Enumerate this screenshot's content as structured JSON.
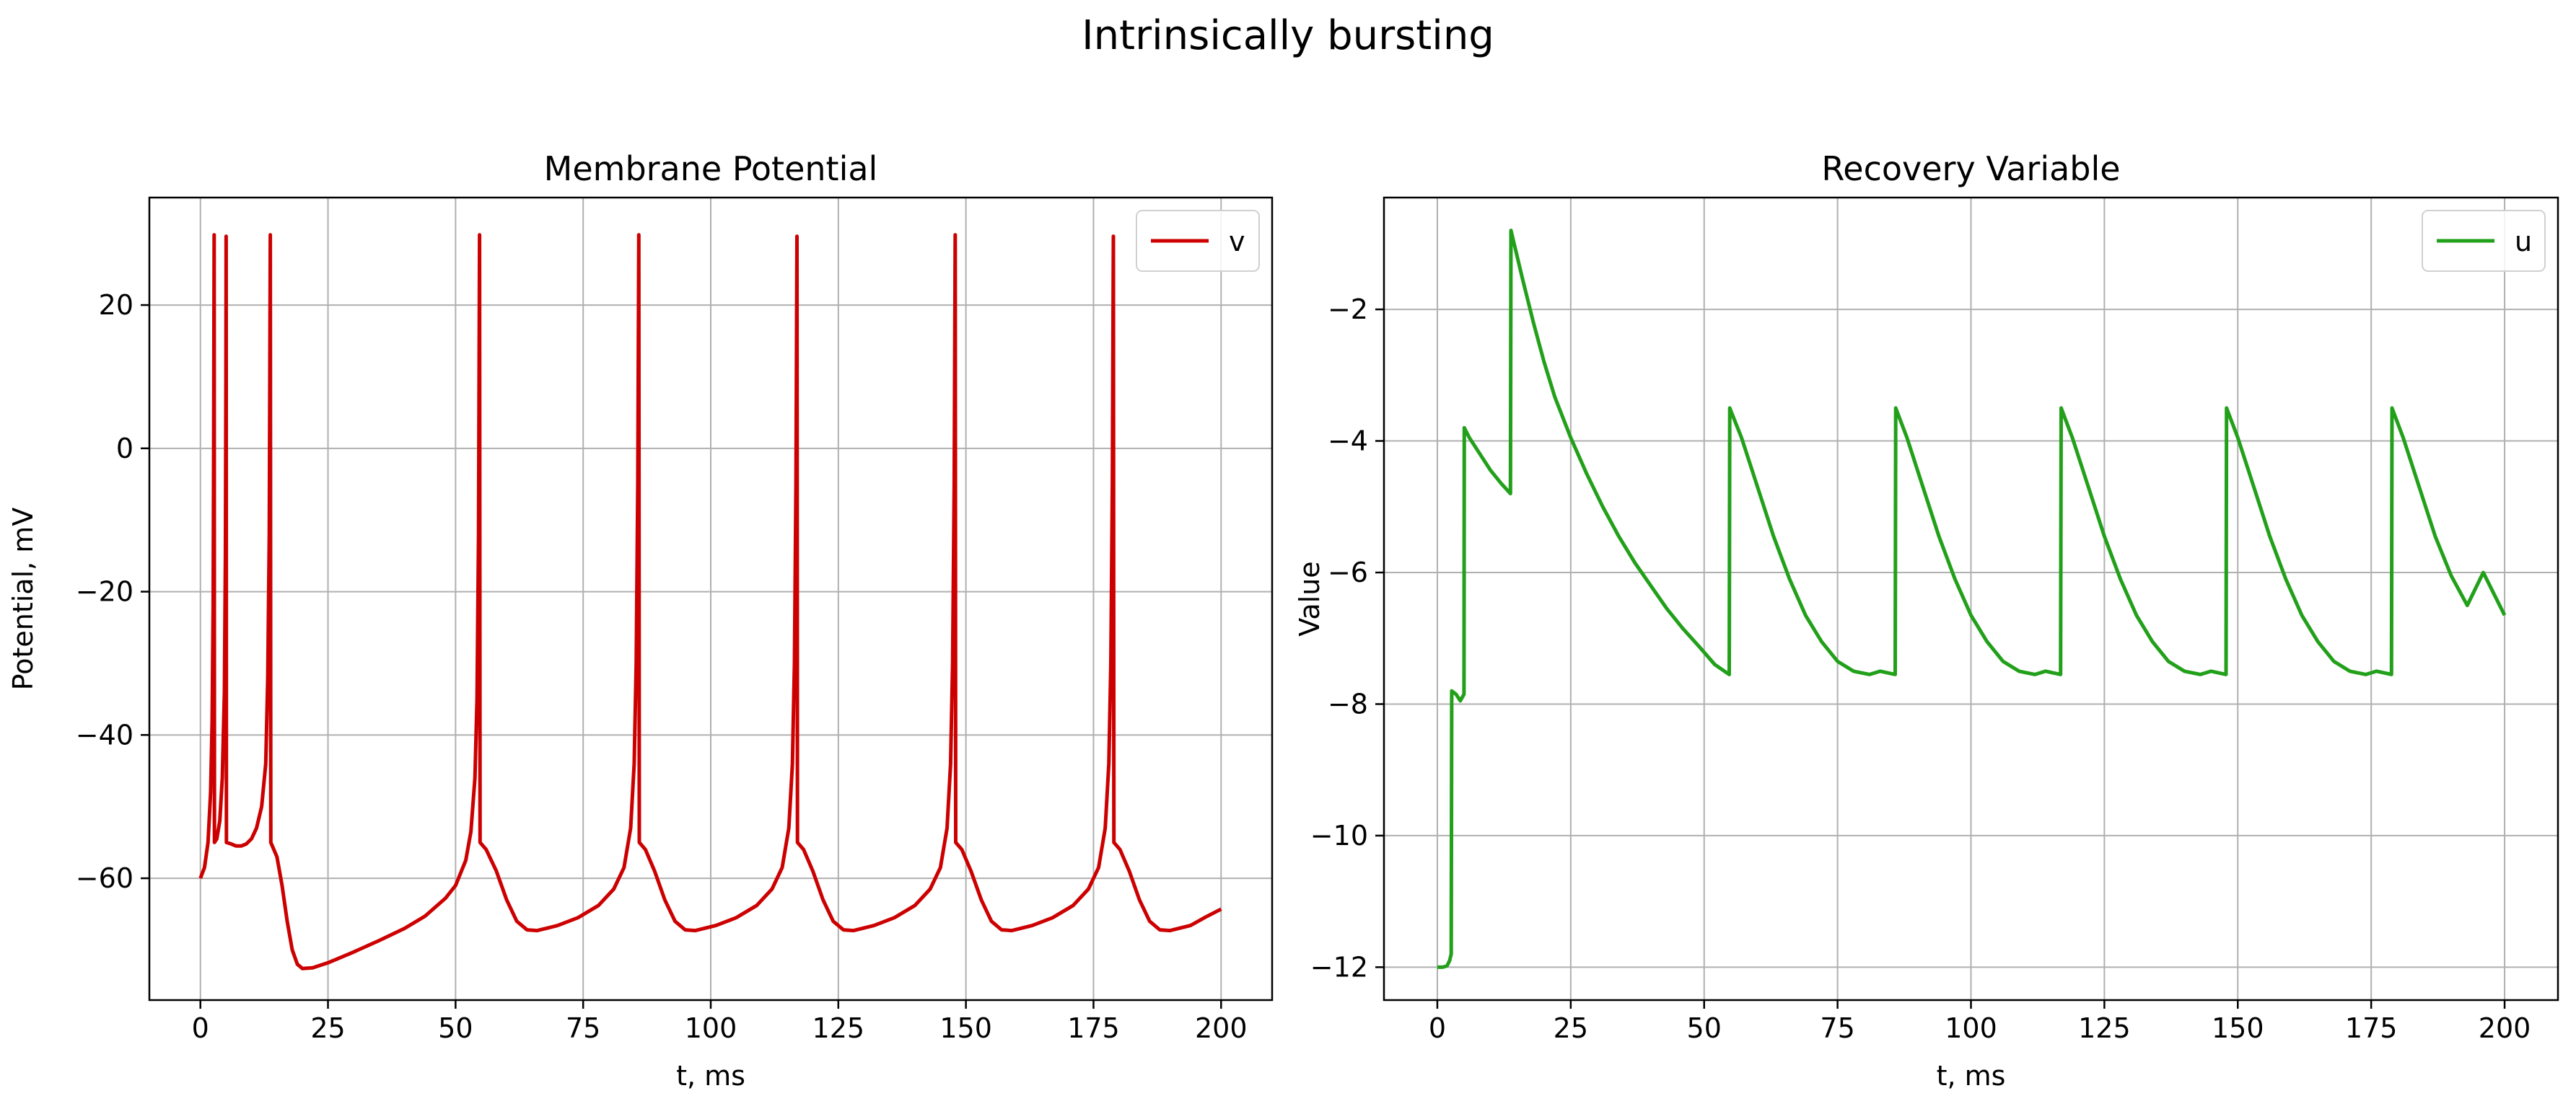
{
  "figure": {
    "suptitle": "Intrinsically bursting"
  },
  "chart_data": [
    {
      "type": "line",
      "title": "Membrane Potential",
      "xlabel": "t, ms",
      "ylabel": "Potential, mV",
      "xlim": [
        -10,
        210
      ],
      "ylim": [
        -77,
        35
      ],
      "xticks": [
        0,
        25,
        50,
        75,
        100,
        125,
        150,
        175,
        200
      ],
      "yticks": [
        -60,
        -40,
        -20,
        0,
        20
      ],
      "grid": true,
      "legend_position": "upper right",
      "series": [
        {
          "name": "v",
          "color": "#cc0000",
          "points": [
            [
              0,
              -60
            ],
            [
              0.8,
              -58.5
            ],
            [
              1.5,
              -55
            ],
            [
              2.0,
              -48
            ],
            [
              2.3,
              -38
            ],
            [
              2.5,
              -22
            ],
            [
              2.6,
              0
            ],
            [
              2.7,
              29.8
            ],
            [
              2.75,
              -55
            ],
            [
              3.2,
              -54.5
            ],
            [
              3.8,
              -52
            ],
            [
              4.3,
              -46
            ],
            [
              4.7,
              -34
            ],
            [
              4.9,
              -15
            ],
            [
              5.0,
              10
            ],
            [
              5.05,
              29.6
            ],
            [
              5.1,
              -55
            ],
            [
              6,
              -55.2
            ],
            [
              7,
              -55.5
            ],
            [
              8,
              -55.5
            ],
            [
              9,
              -55.2
            ],
            [
              10,
              -54.5
            ],
            [
              11,
              -53
            ],
            [
              12,
              -50
            ],
            [
              12.8,
              -44
            ],
            [
              13.2,
              -32
            ],
            [
              13.5,
              -12
            ],
            [
              13.7,
              29.8
            ],
            [
              13.8,
              -55
            ],
            [
              15,
              -57
            ],
            [
              16,
              -61
            ],
            [
              17,
              -66
            ],
            [
              18,
              -70
            ],
            [
              19,
              -72
            ],
            [
              20,
              -72.6
            ],
            [
              22,
              -72.5
            ],
            [
              25,
              -71.8
            ],
            [
              30,
              -70.3
            ],
            [
              35,
              -68.7
            ],
            [
              40,
              -67
            ],
            [
              44,
              -65.3
            ],
            [
              48,
              -62.8
            ],
            [
              50,
              -61
            ],
            [
              52,
              -57.5
            ],
            [
              53,
              -53.5
            ],
            [
              53.8,
              -46
            ],
            [
              54.2,
              -35
            ],
            [
              54.5,
              -12
            ],
            [
              54.7,
              29.8
            ],
            [
              54.8,
              -55
            ],
            [
              56,
              -56
            ],
            [
              58,
              -59
            ],
            [
              60,
              -63
            ],
            [
              62,
              -66
            ],
            [
              64,
              -67.2
            ],
            [
              66,
              -67.3
            ],
            [
              70,
              -66.6
            ],
            [
              74,
              -65.5
            ],
            [
              78,
              -63.8
            ],
            [
              81,
              -61.5
            ],
            [
              83,
              -58.5
            ],
            [
              84.3,
              -53
            ],
            [
              85.0,
              -44
            ],
            [
              85.4,
              -30
            ],
            [
              85.7,
              -5
            ],
            [
              85.9,
              29.8
            ],
            [
              86.0,
              -55
            ],
            [
              87.2,
              -56
            ],
            [
              89,
              -59
            ],
            [
              91,
              -63
            ],
            [
              93,
              -66
            ],
            [
              95,
              -67.2
            ],
            [
              97,
              -67.3
            ],
            [
              101,
              -66.6
            ],
            [
              105,
              -65.5
            ],
            [
              109,
              -63.8
            ],
            [
              112,
              -61.5
            ],
            [
              114,
              -58.5
            ],
            [
              115.3,
              -53
            ],
            [
              116.0,
              -44
            ],
            [
              116.4,
              -30
            ],
            [
              116.7,
              -5
            ],
            [
              116.9,
              29.6
            ],
            [
              117.0,
              -55
            ],
            [
              118.2,
              -56
            ],
            [
              120,
              -59
            ],
            [
              122,
              -63
            ],
            [
              124,
              -66
            ],
            [
              126,
              -67.2
            ],
            [
              128,
              -67.3
            ],
            [
              132,
              -66.6
            ],
            [
              136,
              -65.5
            ],
            [
              140,
              -63.8
            ],
            [
              143,
              -61.5
            ],
            [
              145,
              -58.5
            ],
            [
              146.3,
              -53
            ],
            [
              147.0,
              -44
            ],
            [
              147.4,
              -30
            ],
            [
              147.7,
              -5
            ],
            [
              147.9,
              29.8
            ],
            [
              148.0,
              -55
            ],
            [
              149.2,
              -56
            ],
            [
              151,
              -59
            ],
            [
              153,
              -63
            ],
            [
              155,
              -66
            ],
            [
              157,
              -67.2
            ],
            [
              159,
              -67.3
            ],
            [
              163,
              -66.6
            ],
            [
              167,
              -65.5
            ],
            [
              171,
              -63.8
            ],
            [
              174,
              -61.5
            ],
            [
              176,
              -58.5
            ],
            [
              177.3,
              -53
            ],
            [
              178.0,
              -44
            ],
            [
              178.4,
              -30
            ],
            [
              178.7,
              -5
            ],
            [
              178.9,
              29.6
            ],
            [
              179.0,
              -55
            ],
            [
              180.2,
              -56
            ],
            [
              182,
              -59
            ],
            [
              184,
              -63
            ],
            [
              186,
              -66
            ],
            [
              188,
              -67.2
            ],
            [
              190,
              -67.3
            ],
            [
              194,
              -66.6
            ],
            [
              197,
              -65.4
            ],
            [
              200,
              -64.3
            ]
          ]
        }
      ]
    },
    {
      "type": "line",
      "title": "Recovery Variable",
      "xlabel": "t, ms",
      "ylabel": "Value",
      "xlim": [
        -10,
        210
      ],
      "ylim": [
        -12.5,
        -0.3
      ],
      "xticks": [
        0,
        25,
        50,
        75,
        100,
        125,
        150,
        175,
        200
      ],
      "yticks": [
        -12,
        -10,
        -8,
        -6,
        -4,
        -2
      ],
      "grid": true,
      "legend_position": "upper right",
      "series": [
        {
          "name": "u",
          "color": "#22a01a",
          "points": [
            [
              0,
              -12
            ],
            [
              1,
              -12
            ],
            [
              1.8,
              -11.98
            ],
            [
              2.3,
              -11.9
            ],
            [
              2.6,
              -11.8
            ],
            [
              2.7,
              -7.8
            ],
            [
              3.5,
              -7.85
            ],
            [
              4.3,
              -7.95
            ],
            [
              5.0,
              -7.85
            ],
            [
              5.05,
              -3.8
            ],
            [
              6,
              -3.95
            ],
            [
              8,
              -4.2
            ],
            [
              10,
              -4.45
            ],
            [
              12,
              -4.65
            ],
            [
              13.7,
              -4.8
            ],
            [
              13.8,
              -0.8
            ],
            [
              16,
              -1.55
            ],
            [
              18,
              -2.2
            ],
            [
              20,
              -2.8
            ],
            [
              22,
              -3.33
            ],
            [
              25,
              -3.95
            ],
            [
              28,
              -4.5
            ],
            [
              31,
              -5.0
            ],
            [
              34,
              -5.45
            ],
            [
              37,
              -5.85
            ],
            [
              40,
              -6.2
            ],
            [
              43,
              -6.55
            ],
            [
              46,
              -6.85
            ],
            [
              49,
              -7.12
            ],
            [
              52,
              -7.4
            ],
            [
              54.7,
              -7.55
            ],
            [
              54.8,
              -3.5
            ],
            [
              57,
              -3.95
            ],
            [
              60,
              -4.7
            ],
            [
              63,
              -5.45
            ],
            [
              66,
              -6.1
            ],
            [
              69,
              -6.65
            ],
            [
              72,
              -7.05
            ],
            [
              75,
              -7.35
            ],
            [
              78,
              -7.5
            ],
            [
              81,
              -7.55
            ],
            [
              83,
              -7.5
            ],
            [
              85.8,
              -7.55
            ],
            [
              85.9,
              -3.5
            ],
            [
              88,
              -3.95
            ],
            [
              91,
              -4.7
            ],
            [
              94,
              -5.45
            ],
            [
              97,
              -6.1
            ],
            [
              100,
              -6.65
            ],
            [
              103,
              -7.05
            ],
            [
              106,
              -7.35
            ],
            [
              109,
              -7.5
            ],
            [
              112,
              -7.55
            ],
            [
              114,
              -7.5
            ],
            [
              116.8,
              -7.55
            ],
            [
              116.9,
              -3.5
            ],
            [
              119,
              -3.95
            ],
            [
              122,
              -4.7
            ],
            [
              125,
              -5.45
            ],
            [
              128,
              -6.1
            ],
            [
              131,
              -6.65
            ],
            [
              134,
              -7.05
            ],
            [
              137,
              -7.35
            ],
            [
              140,
              -7.5
            ],
            [
              143,
              -7.55
            ],
            [
              145,
              -7.5
            ],
            [
              147.8,
              -7.55
            ],
            [
              147.9,
              -3.5
            ],
            [
              150,
              -3.95
            ],
            [
              153,
              -4.7
            ],
            [
              156,
              -5.45
            ],
            [
              159,
              -6.1
            ],
            [
              162,
              -6.65
            ],
            [
              165,
              -7.05
            ],
            [
              168,
              -7.35
            ],
            [
              171,
              -7.5
            ],
            [
              174,
              -7.55
            ],
            [
              176,
              -7.5
            ],
            [
              178.8,
              -7.55
            ],
            [
              178.9,
              -3.5
            ],
            [
              181,
              -3.95
            ],
            [
              184,
              -4.7
            ],
            [
              187,
              -5.45
            ],
            [
              190,
              -6.05
            ],
            [
              193,
              -6.5
            ],
            [
              196,
              -6.0
            ],
            [
              200,
              -6.65
            ]
          ]
        }
      ]
    }
  ]
}
